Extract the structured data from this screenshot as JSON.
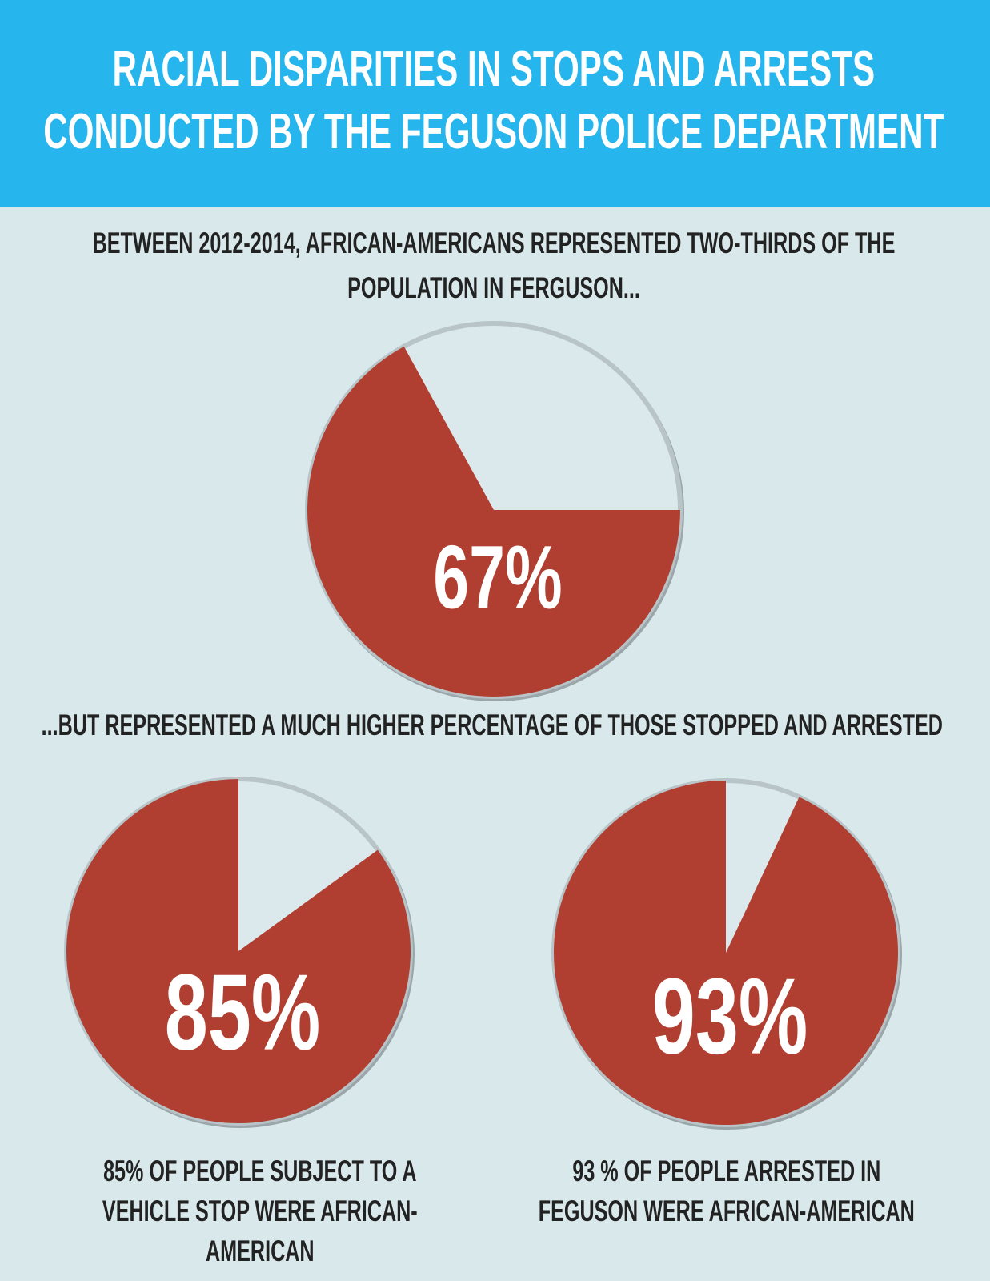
{
  "title": "RACIAL DISPARITIES IN STOPS AND ARRESTS CONDUCTED BY THE FEGUSON POLICE DEPARTMENT",
  "intro": "BETWEEN 2012-2014, AFRICAN-AMERICANS REPRESENTED TWO-THIRDS OF THE POPULATION IN FERGUSON...",
  "transition": "...BUT REPRESENTED A MUCH HIGHER PERCENTAGE OF THOSE STOPPED AND ARRESTED",
  "chart_data": [
    {
      "type": "pie",
      "values": [
        67
      ],
      "value_labels": [
        "67%"
      ],
      "color": "#b03f31"
    },
    {
      "type": "pie",
      "values": [
        85
      ],
      "value_labels": [
        "85%"
      ],
      "color": "#b03f31",
      "caption": "85% OF PEOPLE SUBJECT TO A VEHICLE STOP WERE AFRICAN-AMERICAN"
    },
    {
      "type": "pie",
      "values": [
        93
      ],
      "value_labels": [
        "93%"
      ],
      "color": "#b03f31",
      "caption": "93 % OF PEOPLE ARRESTED IN FEGUSON WERE AFRICAN-AMERICAN"
    }
  ]
}
